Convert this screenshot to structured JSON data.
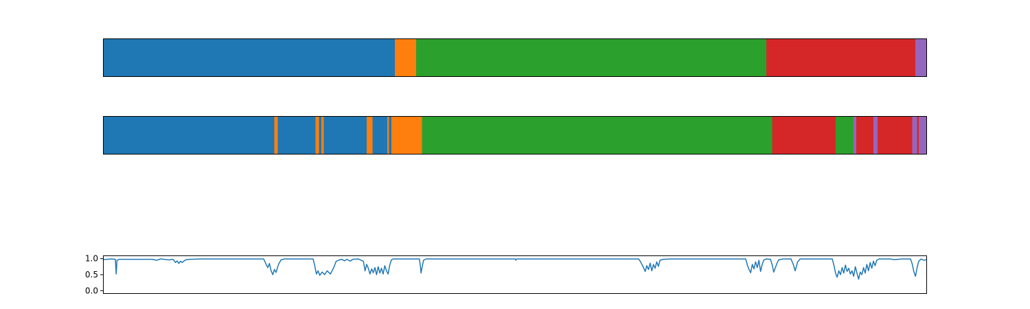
{
  "chart_data": [
    {
      "type": "bar",
      "orientation": "horizontal-segments",
      "title": "",
      "xlabel": "",
      "ylabel": "",
      "x_range": [
        0,
        1
      ],
      "axis_ticks": false,
      "segments": [
        {
          "start": 0.0,
          "end": 0.354,
          "color": "#1f77b4"
        },
        {
          "start": 0.354,
          "end": 0.38,
          "color": "#ff7f0e"
        },
        {
          "start": 0.38,
          "end": 0.805,
          "color": "#2ca02c"
        },
        {
          "start": 0.805,
          "end": 0.986,
          "color": "#d62728"
        },
        {
          "start": 0.986,
          "end": 1.0,
          "color": "#9467bd"
        }
      ]
    },
    {
      "type": "bar",
      "orientation": "horizontal-segments",
      "title": "",
      "xlabel": "",
      "ylabel": "",
      "x_range": [
        0,
        1
      ],
      "axis_ticks": false,
      "segments": [
        {
          "start": 0.0,
          "end": 0.208,
          "color": "#1f77b4"
        },
        {
          "start": 0.208,
          "end": 0.212,
          "color": "#ff7f0e"
        },
        {
          "start": 0.212,
          "end": 0.258,
          "color": "#1f77b4"
        },
        {
          "start": 0.258,
          "end": 0.262,
          "color": "#ff7f0e"
        },
        {
          "start": 0.262,
          "end": 0.265,
          "color": "#1f77b4"
        },
        {
          "start": 0.265,
          "end": 0.268,
          "color": "#ff7f0e"
        },
        {
          "start": 0.268,
          "end": 0.32,
          "color": "#1f77b4"
        },
        {
          "start": 0.32,
          "end": 0.327,
          "color": "#ff7f0e"
        },
        {
          "start": 0.327,
          "end": 0.345,
          "color": "#1f77b4"
        },
        {
          "start": 0.345,
          "end": 0.347,
          "color": "#ff7f0e"
        },
        {
          "start": 0.347,
          "end": 0.35,
          "color": "#1f77b4"
        },
        {
          "start": 0.35,
          "end": 0.387,
          "color": "#ff7f0e"
        },
        {
          "start": 0.387,
          "end": 0.812,
          "color": "#2ca02c"
        },
        {
          "start": 0.812,
          "end": 0.889,
          "color": "#d62728"
        },
        {
          "start": 0.889,
          "end": 0.911,
          "color": "#2ca02c"
        },
        {
          "start": 0.911,
          "end": 0.914,
          "color": "#9467bd"
        },
        {
          "start": 0.914,
          "end": 0.935,
          "color": "#d62728"
        },
        {
          "start": 0.935,
          "end": 0.94,
          "color": "#9467bd"
        },
        {
          "start": 0.94,
          "end": 0.982,
          "color": "#d62728"
        },
        {
          "start": 0.982,
          "end": 0.988,
          "color": "#9467bd"
        },
        {
          "start": 0.988,
          "end": 0.99,
          "color": "#d62728"
        },
        {
          "start": 0.99,
          "end": 1.0,
          "color": "#9467bd"
        }
      ]
    },
    {
      "type": "line",
      "title": "",
      "xlabel": "",
      "ylabel": "",
      "x_range": [
        0,
        1
      ],
      "ylim": [
        -0.1,
        1.1
      ],
      "yticks": [
        "1.0",
        "0.5",
        "0.0"
      ],
      "ytick_values": [
        1.0,
        0.5,
        0.0
      ],
      "show_xticks": false,
      "series": [
        {
          "color": "#1f77b4",
          "points": [
            [
              0.0,
              0.97
            ],
            [
              0.01,
              0.99
            ],
            [
              0.015,
              0.98
            ],
            [
              0.016,
              0.52
            ],
            [
              0.017,
              0.95
            ],
            [
              0.02,
              0.98
            ],
            [
              0.06,
              0.98
            ],
            [
              0.065,
              0.95
            ],
            [
              0.07,
              0.99
            ],
            [
              0.08,
              0.96
            ],
            [
              0.085,
              0.98
            ],
            [
              0.088,
              0.88
            ],
            [
              0.09,
              0.93
            ],
            [
              0.092,
              0.85
            ],
            [
              0.094,
              0.92
            ],
            [
              0.096,
              0.88
            ],
            [
              0.1,
              0.96
            ],
            [
              0.105,
              0.98
            ],
            [
              0.12,
              0.99
            ],
            [
              0.195,
              0.99
            ],
            [
              0.198,
              0.82
            ],
            [
              0.2,
              0.72
            ],
            [
              0.202,
              0.85
            ],
            [
              0.204,
              0.62
            ],
            [
              0.206,
              0.5
            ],
            [
              0.208,
              0.66
            ],
            [
              0.21,
              0.57
            ],
            [
              0.213,
              0.82
            ],
            [
              0.216,
              0.96
            ],
            [
              0.22,
              0.99
            ],
            [
              0.255,
              0.99
            ],
            [
              0.257,
              0.78
            ],
            [
              0.259,
              0.52
            ],
            [
              0.261,
              0.62
            ],
            [
              0.263,
              0.48
            ],
            [
              0.266,
              0.58
            ],
            [
              0.269,
              0.5
            ],
            [
              0.272,
              0.62
            ],
            [
              0.276,
              0.52
            ],
            [
              0.28,
              0.72
            ],
            [
              0.283,
              0.92
            ],
            [
              0.287,
              0.96
            ],
            [
              0.29,
              0.98
            ],
            [
              0.293,
              0.93
            ],
            [
              0.296,
              0.98
            ],
            [
              0.3,
              0.92
            ],
            [
              0.303,
              0.98
            ],
            [
              0.31,
              0.99
            ],
            [
              0.316,
              0.92
            ],
            [
              0.318,
              0.62
            ],
            [
              0.32,
              0.82
            ],
            [
              0.322,
              0.7
            ],
            [
              0.324,
              0.52
            ],
            [
              0.326,
              0.68
            ],
            [
              0.328,
              0.56
            ],
            [
              0.33,
              0.72
            ],
            [
              0.332,
              0.5
            ],
            [
              0.334,
              0.75
            ],
            [
              0.336,
              0.55
            ],
            [
              0.338,
              0.7
            ],
            [
              0.34,
              0.52
            ],
            [
              0.342,
              0.78
            ],
            [
              0.344,
              0.62
            ],
            [
              0.346,
              0.52
            ],
            [
              0.348,
              0.8
            ],
            [
              0.35,
              0.96
            ],
            [
              0.352,
              0.99
            ],
            [
              0.384,
              0.99
            ],
            [
              0.385,
              0.8
            ],
            [
              0.386,
              0.55
            ],
            [
              0.387,
              0.7
            ],
            [
              0.389,
              0.95
            ],
            [
              0.392,
              0.99
            ],
            [
              0.5,
              0.99
            ],
            [
              0.501,
              0.95
            ],
            [
              0.502,
              0.99
            ],
            [
              0.65,
              0.99
            ],
            [
              0.652,
              0.92
            ],
            [
              0.654,
              0.82
            ],
            [
              0.656,
              0.72
            ],
            [
              0.658,
              0.6
            ],
            [
              0.66,
              0.78
            ],
            [
              0.662,
              0.66
            ],
            [
              0.664,
              0.86
            ],
            [
              0.666,
              0.62
            ],
            [
              0.668,
              0.82
            ],
            [
              0.67,
              0.7
            ],
            [
              0.672,
              0.9
            ],
            [
              0.674,
              0.76
            ],
            [
              0.676,
              0.95
            ],
            [
              0.68,
              0.98
            ],
            [
              0.69,
              0.99
            ],
            [
              0.78,
              0.99
            ],
            [
              0.782,
              0.8
            ],
            [
              0.784,
              0.66
            ],
            [
              0.786,
              0.56
            ],
            [
              0.788,
              0.82
            ],
            [
              0.79,
              0.68
            ],
            [
              0.792,
              0.9
            ],
            [
              0.794,
              0.72
            ],
            [
              0.796,
              0.95
            ],
            [
              0.798,
              0.6
            ],
            [
              0.8,
              0.82
            ],
            [
              0.802,
              0.96
            ],
            [
              0.805,
              0.99
            ],
            [
              0.81,
              0.98
            ],
            [
              0.812,
              0.82
            ],
            [
              0.814,
              0.58
            ],
            [
              0.816,
              0.72
            ],
            [
              0.818,
              0.86
            ],
            [
              0.82,
              0.96
            ],
            [
              0.825,
              0.99
            ],
            [
              0.835,
              0.99
            ],
            [
              0.838,
              0.8
            ],
            [
              0.84,
              0.62
            ],
            [
              0.843,
              0.9
            ],
            [
              0.846,
              0.99
            ],
            [
              0.885,
              0.99
            ],
            [
              0.887,
              0.8
            ],
            [
              0.889,
              0.55
            ],
            [
              0.891,
              0.42
            ],
            [
              0.893,
              0.62
            ],
            [
              0.895,
              0.5
            ],
            [
              0.897,
              0.72
            ],
            [
              0.899,
              0.55
            ],
            [
              0.901,
              0.8
            ],
            [
              0.903,
              0.6
            ],
            [
              0.905,
              0.7
            ],
            [
              0.907,
              0.52
            ],
            [
              0.909,
              0.62
            ],
            [
              0.911,
              0.45
            ],
            [
              0.913,
              0.75
            ],
            [
              0.915,
              0.55
            ],
            [
              0.917,
              0.36
            ],
            [
              0.919,
              0.58
            ],
            [
              0.921,
              0.5
            ],
            [
              0.923,
              0.72
            ],
            [
              0.925,
              0.55
            ],
            [
              0.927,
              0.82
            ],
            [
              0.929,
              0.62
            ],
            [
              0.931,
              0.88
            ],
            [
              0.933,
              0.7
            ],
            [
              0.935,
              0.92
            ],
            [
              0.937,
              0.78
            ],
            [
              0.939,
              0.95
            ],
            [
              0.942,
              0.99
            ],
            [
              0.955,
              0.99
            ],
            [
              0.96,
              0.97
            ],
            [
              0.97,
              0.99
            ],
            [
              0.98,
              0.99
            ],
            [
              0.982,
              0.84
            ],
            [
              0.984,
              0.6
            ],
            [
              0.986,
              0.45
            ],
            [
              0.988,
              0.72
            ],
            [
              0.99,
              0.92
            ],
            [
              0.993,
              0.99
            ],
            [
              0.996,
              0.95
            ],
            [
              1.0,
              0.97
            ]
          ]
        }
      ]
    }
  ]
}
